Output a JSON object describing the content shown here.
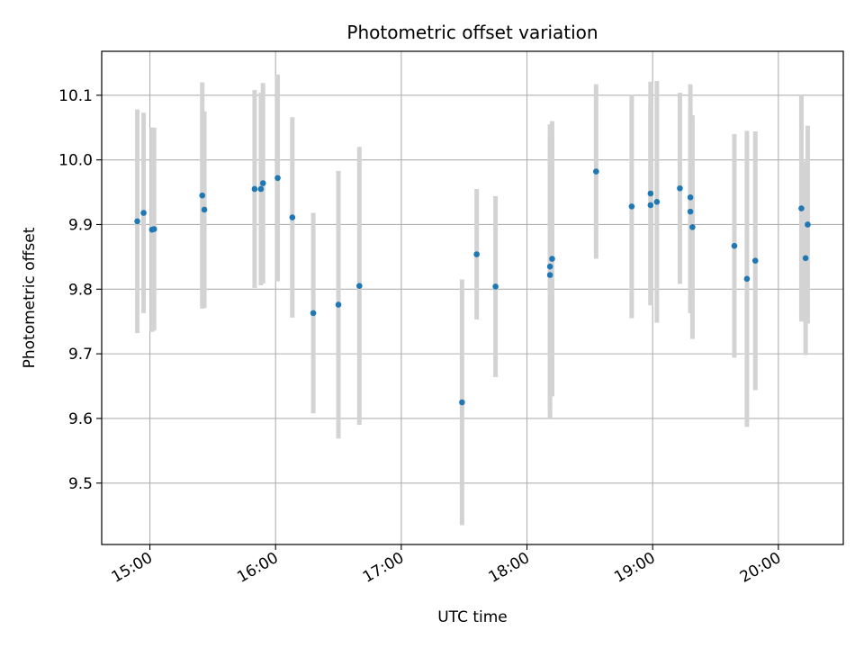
{
  "chart_data": {
    "type": "scatter",
    "title": "Photometric offset variation",
    "xlabel": "UTC time",
    "ylabel": "Photometric offset",
    "x_axis_type": "time",
    "xlim": [
      "14:37",
      "20:31"
    ],
    "ylim": [
      9.405,
      10.168
    ],
    "grid": true,
    "x_ticks": [
      "15:00",
      "16:00",
      "17:00",
      "18:00",
      "19:00",
      "20:00"
    ],
    "y_ticks": [
      9.5,
      9.6,
      9.7,
      9.8,
      9.9,
      10.0,
      10.1
    ],
    "point_color": "#1f77b4",
    "errorbar_color": "#d3d3d3",
    "points": [
      {
        "x": "14:54",
        "y": 9.905,
        "err": 0.173
      },
      {
        "x": "14:57",
        "y": 9.918,
        "err": 0.155
      },
      {
        "x": "15:01",
        "y": 9.892,
        "err": 0.158
      },
      {
        "x": "15:02",
        "y": 9.893,
        "err": 0.157
      },
      {
        "x": "15:25",
        "y": 9.945,
        "err": 0.175
      },
      {
        "x": "15:26",
        "y": 9.923,
        "err": 0.152
      },
      {
        "x": "15:50",
        "y": 9.955,
        "err": 0.153
      },
      {
        "x": "15:53",
        "y": 9.955,
        "err": 0.149
      },
      {
        "x": "15:54",
        "y": 9.964,
        "err": 0.155
      },
      {
        "x": "16:01",
        "y": 9.972,
        "err": 0.16
      },
      {
        "x": "16:08",
        "y": 9.911,
        "err": 0.155
      },
      {
        "x": "16:18",
        "y": 9.763,
        "err": 0.155
      },
      {
        "x": "16:30",
        "y": 9.776,
        "err": 0.207
      },
      {
        "x": "16:40",
        "y": 9.805,
        "err": 0.215
      },
      {
        "x": "17:29",
        "y": 9.625,
        "err": 0.19
      },
      {
        "x": "17:36",
        "y": 9.854,
        "err": 0.101
      },
      {
        "x": "17:45",
        "y": 9.804,
        "err": 0.14
      },
      {
        "x": "18:11",
        "y": 9.835,
        "err": 0.22
      },
      {
        "x": "18:11",
        "y": 9.822,
        "err": 0.222
      },
      {
        "x": "18:12",
        "y": 9.847,
        "err": 0.213
      },
      {
        "x": "18:33",
        "y": 9.982,
        "err": 0.135
      },
      {
        "x": "18:50",
        "y": 9.928,
        "err": 0.173
      },
      {
        "x": "18:59",
        "y": 9.948,
        "err": 0.173
      },
      {
        "x": "18:59",
        "y": 9.93,
        "err": 0.155
      },
      {
        "x": "19:02",
        "y": 9.935,
        "err": 0.187
      },
      {
        "x": "19:13",
        "y": 9.956,
        "err": 0.148
      },
      {
        "x": "19:18",
        "y": 9.92,
        "err": 0.157
      },
      {
        "x": "19:18",
        "y": 9.942,
        "err": 0.175
      },
      {
        "x": "19:19",
        "y": 9.896,
        "err": 0.173
      },
      {
        "x": "19:39",
        "y": 9.867,
        "err": 0.173
      },
      {
        "x": "19:45",
        "y": 9.816,
        "err": 0.229
      },
      {
        "x": "19:49",
        "y": 9.844,
        "err": 0.2
      },
      {
        "x": "20:11",
        "y": 9.925,
        "err": 0.175
      },
      {
        "x": "20:13",
        "y": 9.848,
        "err": 0.15
      },
      {
        "x": "20:14",
        "y": 9.9,
        "err": 0.153
      }
    ]
  }
}
